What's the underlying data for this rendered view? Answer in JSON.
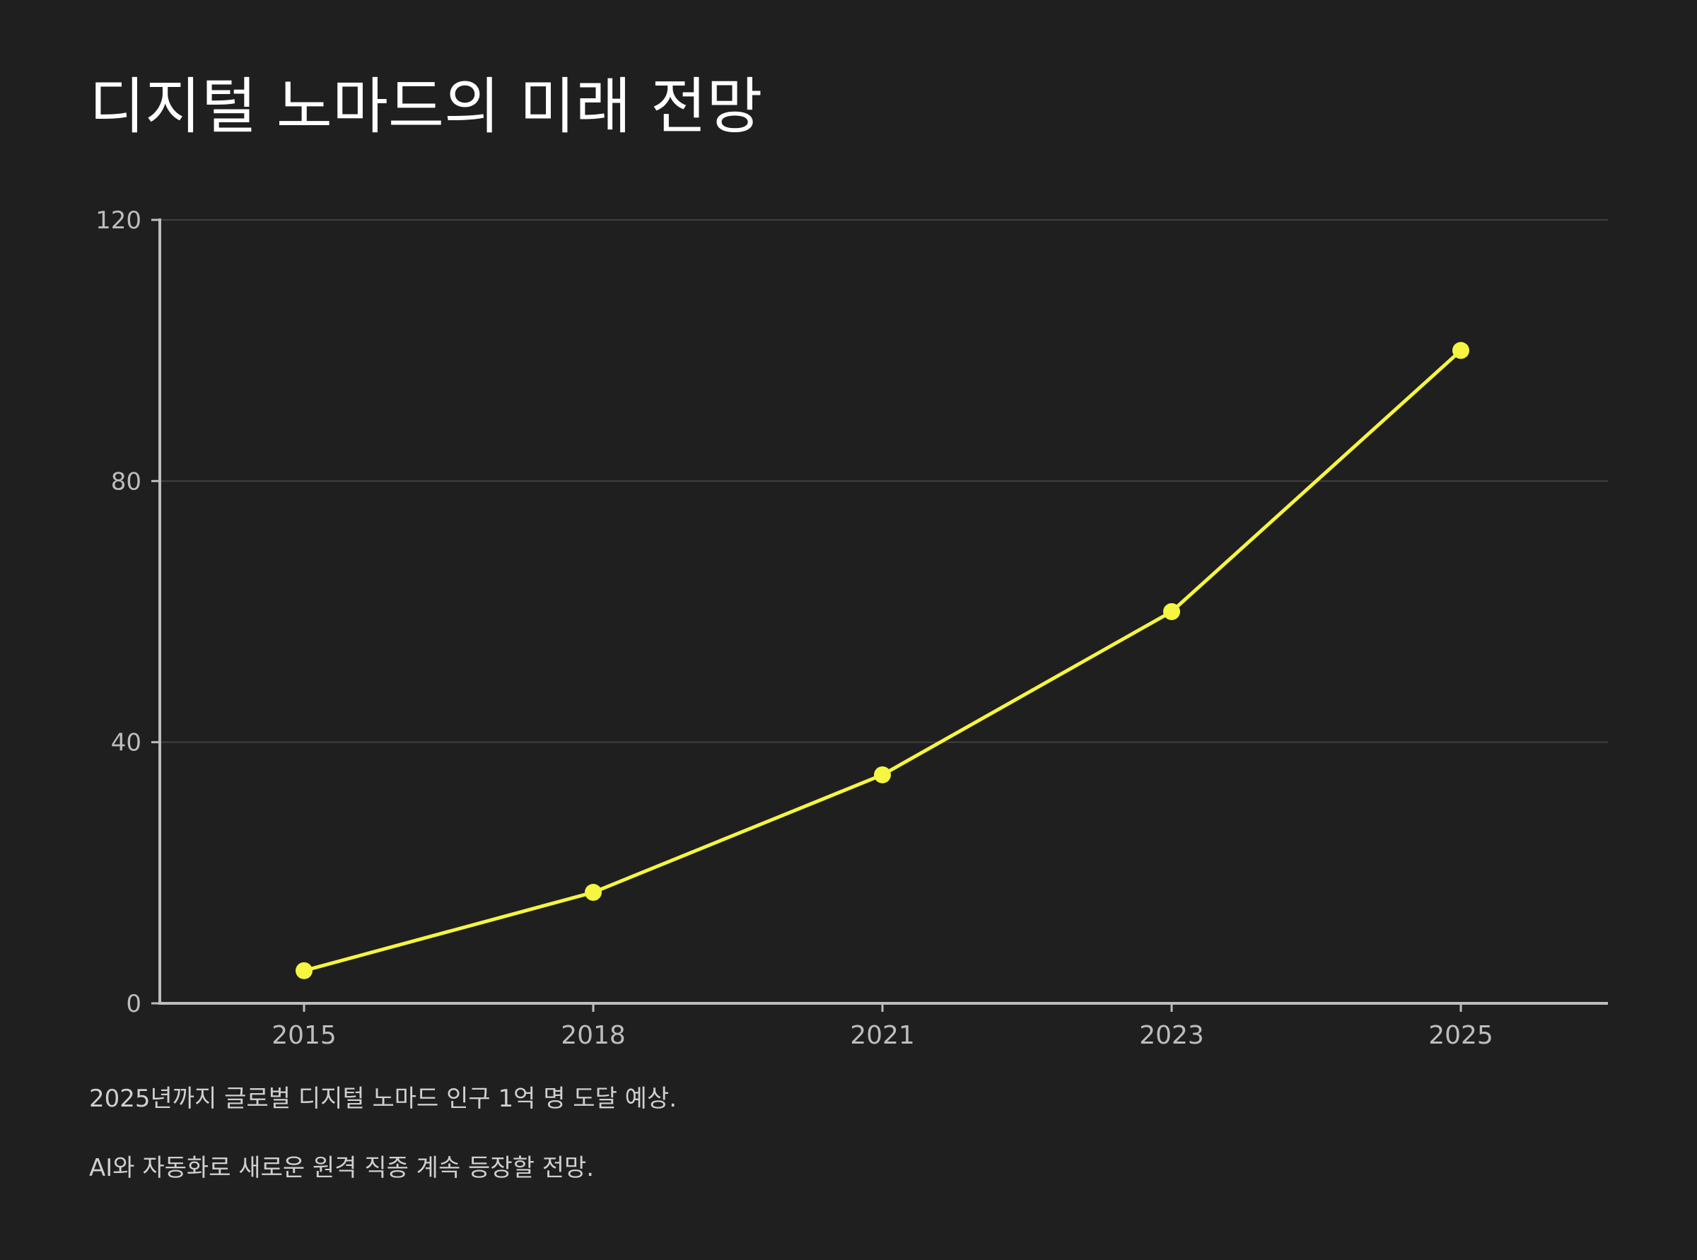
{
  "chart_data": {
    "type": "line",
    "title": "디지털 노마드의 미래 전망",
    "xlabel": "",
    "ylabel": "",
    "categories": [
      "2015",
      "2018",
      "2021",
      "2023",
      "2025"
    ],
    "series": [
      {
        "values": [
          5,
          17,
          35,
          60,
          100
        ]
      }
    ],
    "ylim": [
      0,
      120
    ],
    "yticks": [
      0,
      40,
      80,
      120
    ],
    "grid": true,
    "legend": "none",
    "colors": {
      "line": "#f5f542",
      "grid": "#404040",
      "axis": "#bdbdbd",
      "tick_label": "#bdbdbd"
    }
  },
  "notes": [
    "2025년까지 글로벌 디지털 노마드 인구 1억 명 도달 예상.",
    "AI와 자동화로 새로운 원격 직종 계속 등장할 전망."
  ]
}
